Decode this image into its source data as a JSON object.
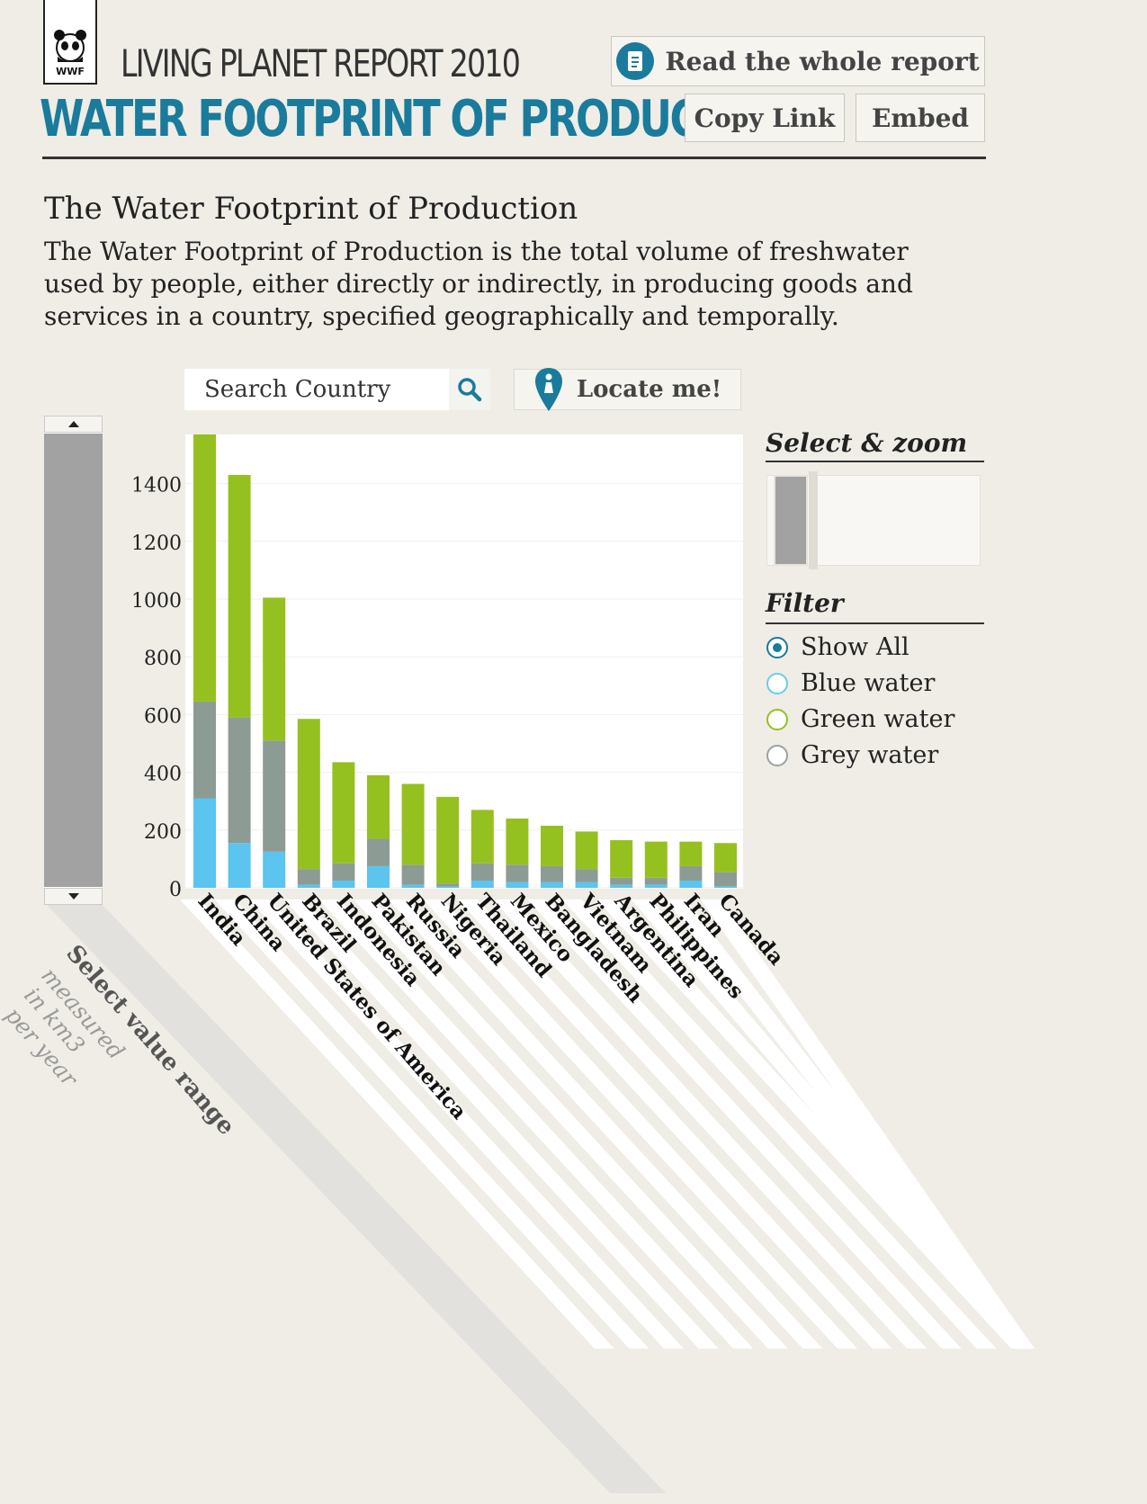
{
  "header": {
    "logo_text": "WWF",
    "report_title": "LIVING PLANET REPORT 2010",
    "page_title": "WATER FOOTPRINT OF PRODUCTION",
    "read_report_label": "Read the whole report",
    "copy_link_label": "Copy Link",
    "embed_label": "Embed"
  },
  "intro": {
    "title": "The Water Footprint of Production",
    "description": "The Water Footprint of Production is the total volume of freshwater used by people, either directly or indirectly, in producing goods and services in a country, specified geographically and temporally."
  },
  "search": {
    "placeholder": "Search Country",
    "locate_label": "Locate me!"
  },
  "panel": {
    "zoom_title": "Select & zoom",
    "filter_title": "Filter",
    "filters": [
      {
        "label": "Show All",
        "selected": true,
        "color": "#1a7b9c"
      },
      {
        "label": "Blue water",
        "selected": false,
        "color": "#6ecbe8"
      },
      {
        "label": "Green water",
        "selected": false,
        "color": "#94c11f"
      },
      {
        "label": "Grey water",
        "selected": false,
        "color": "#98a49f"
      }
    ]
  },
  "range_label": "Select value range",
  "units_label": [
    "measured",
    "in km3",
    "per year"
  ],
  "colors": {
    "blue": "#5bc4ef",
    "green": "#94c11f",
    "grey": "#8c9c95",
    "accent": "#1a7b9c"
  },
  "chart_data": {
    "type": "bar",
    "stacked": true,
    "categories": [
      "India",
      "China",
      "United States of America",
      "Brazil",
      "Indonesia",
      "Pakistan",
      "Russia",
      "Nigeria",
      "Thailand",
      "Mexico",
      "Bangladesh",
      "Vietnam",
      "Argentina",
      "Philippines",
      "Iran",
      "Canada"
    ],
    "series": [
      {
        "name": "Blue water",
        "color": "#5bc4ef",
        "values": [
          310,
          155,
          125,
          10,
          25,
          75,
          10,
          5,
          25,
          20,
          20,
          20,
          10,
          10,
          25,
          5
        ]
      },
      {
        "name": "Grey water",
        "color": "#8c9c95",
        "values": [
          335,
          435,
          385,
          55,
          60,
          95,
          70,
          10,
          60,
          60,
          55,
          45,
          25,
          25,
          50,
          50
        ]
      },
      {
        "name": "Green water",
        "color": "#94c11f",
        "values": [
          925,
          840,
          495,
          520,
          350,
          220,
          280,
          300,
          185,
          160,
          140,
          130,
          130,
          125,
          85,
          100
        ]
      }
    ],
    "yticks": [
      0,
      200,
      400,
      600,
      800,
      1000,
      1200,
      1400
    ],
    "ylim": [
      0,
      1570
    ]
  }
}
